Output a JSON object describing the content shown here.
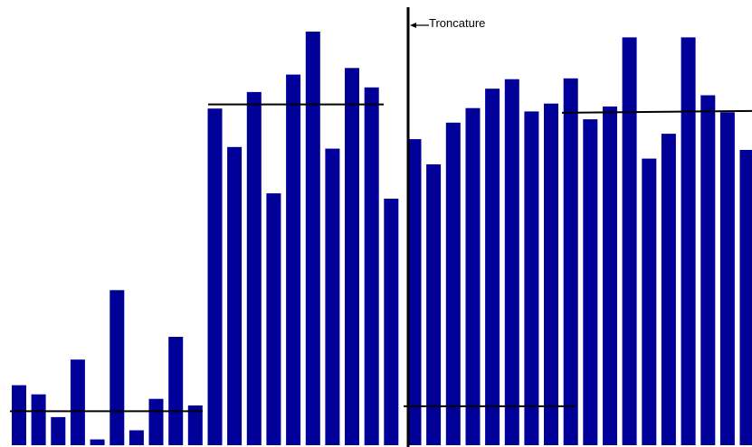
{
  "chart_data": {
    "type": "bar",
    "title": "",
    "xlabel": "",
    "ylabel": "",
    "ylim": [
      0,
      100
    ],
    "grid": false,
    "bar_color": "#000099",
    "series": [
      {
        "name": "",
        "values": [
          14.5,
          12.3,
          6.8,
          20.7,
          1.4,
          37.5,
          3.6,
          11.2,
          26.2,
          9.6,
          81.4,
          72.1,
          85.4,
          60.9,
          89.6,
          100.0,
          71.7,
          91.2,
          86.5,
          59.6,
          74.0,
          67.9,
          78.0,
          81.5,
          86.2,
          88.5,
          80.7,
          82.6,
          88.7,
          78.8,
          81.9,
          98.6,
          69.3,
          75.3,
          98.6,
          84.6,
          80.5,
          71.4,
          75.6,
          77.0
        ]
      }
    ],
    "reference_lines": [
      {
        "segment": 1,
        "value": 8.2
      },
      {
        "segment": 2,
        "value": 82.4
      },
      {
        "segment": 3,
        "value": 9.4
      },
      {
        "segment": 4,
        "value": 80.8
      }
    ],
    "annotation": {
      "label": "Troncature",
      "line_color": "#000000"
    }
  }
}
